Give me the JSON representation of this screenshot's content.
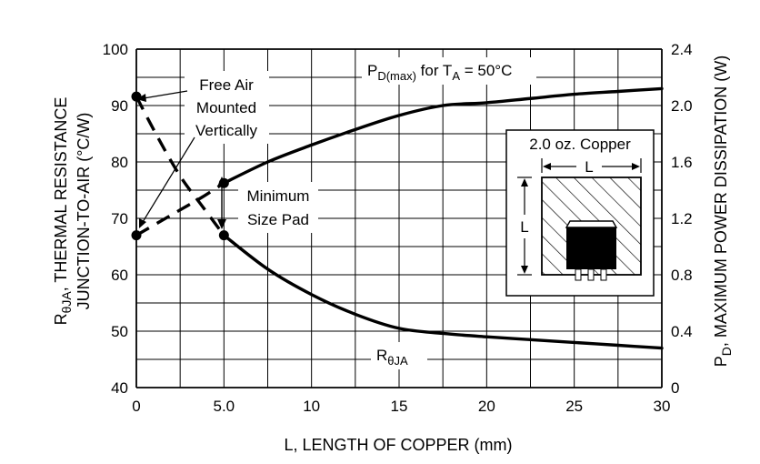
{
  "chart_data": {
    "type": "line",
    "xlabel": "L, LENGTH OF COPPER (mm)",
    "ylabel_left_line1_main": "R",
    "ylabel_left_line1_sub": "θJA",
    "ylabel_left_line1_rest": ", THERMAL RESISTANCE",
    "ylabel_left_line2": "JUNCTION-TO-AIR (°C/W)",
    "ylabel_right_main": "P",
    "ylabel_right_sub": "D",
    "ylabel_right_rest": ", MAXIMUM POWER DISSIPATION (W)",
    "x_ticks": [
      "0",
      "5.0",
      "10",
      "15",
      "20",
      "25",
      "30"
    ],
    "x_tick_values": [
      0,
      5,
      10,
      15,
      20,
      25,
      30
    ],
    "y_left_ticks": [
      "40",
      "50",
      "60",
      "70",
      "80",
      "90",
      "100"
    ],
    "y_left_tick_values": [
      40,
      50,
      60,
      70,
      80,
      90,
      100
    ],
    "y_right_ticks": [
      "0",
      "0.4",
      "0.8",
      "1.2",
      "1.6",
      "2.0",
      "2.4"
    ],
    "y_right_tick_values": [
      0,
      0.4,
      0.8,
      1.2,
      1.6,
      2.0,
      2.4
    ],
    "xlim": [
      0,
      30
    ],
    "ylim_left": [
      40,
      100
    ],
    "ylim_right": [
      0,
      2.4
    ],
    "grid": true,
    "series": [
      {
        "name": "RθJA",
        "label_main": "R",
        "label_sub": "θJA",
        "axis": "left",
        "style": "solid",
        "x": [
          5,
          7.5,
          10,
          12.5,
          15,
          17.5,
          20,
          22.5,
          25,
          27.5,
          30
        ],
        "y": [
          67,
          61,
          56.5,
          53,
          50.5,
          49.6,
          49,
          48.5,
          48,
          47.5,
          47
        ]
      },
      {
        "name": "RθJA (0–5 mm)",
        "axis": "left",
        "style": "dashed",
        "x": [
          0,
          1.2,
          2.5,
          3.8,
          5
        ],
        "y": [
          91.6,
          84.5,
          77.5,
          72,
          67
        ]
      },
      {
        "name": "PD(max) for TA = 50°C",
        "label_parts": [
          "P",
          "D(max)",
          " for T",
          "A",
          " = 50°C"
        ],
        "axis": "right",
        "style": "solid",
        "x": [
          5,
          7.5,
          10,
          12.5,
          15,
          17.5,
          20,
          22.5,
          25,
          27.5,
          30
        ],
        "y": [
          1.45,
          1.6,
          1.72,
          1.83,
          1.93,
          2.0,
          2.02,
          2.05,
          2.08,
          2.1,
          2.12
        ]
      },
      {
        "name": "PD(max) (0–5 mm)",
        "axis": "right",
        "style": "dashed",
        "x": [
          0,
          1.25,
          2.5,
          3.75,
          5
        ],
        "y": [
          1.08,
          1.17,
          1.26,
          1.35,
          1.45
        ]
      }
    ],
    "markers": [
      {
        "x": 0,
        "y": 91.6,
        "axis": "left"
      },
      {
        "x": 5,
        "y": 67,
        "axis": "left"
      },
      {
        "x": 0,
        "y": 1.08,
        "axis": "right"
      },
      {
        "x": 5,
        "y": 1.45,
        "axis": "right"
      }
    ],
    "annotations": {
      "free_air": [
        "Free Air",
        "Mounted",
        "Vertically"
      ],
      "min_pad": [
        "Minimum",
        "Size Pad"
      ]
    },
    "inset": {
      "title": "2.0 oz. Copper",
      "dim_h": "L",
      "dim_v": "L"
    }
  }
}
